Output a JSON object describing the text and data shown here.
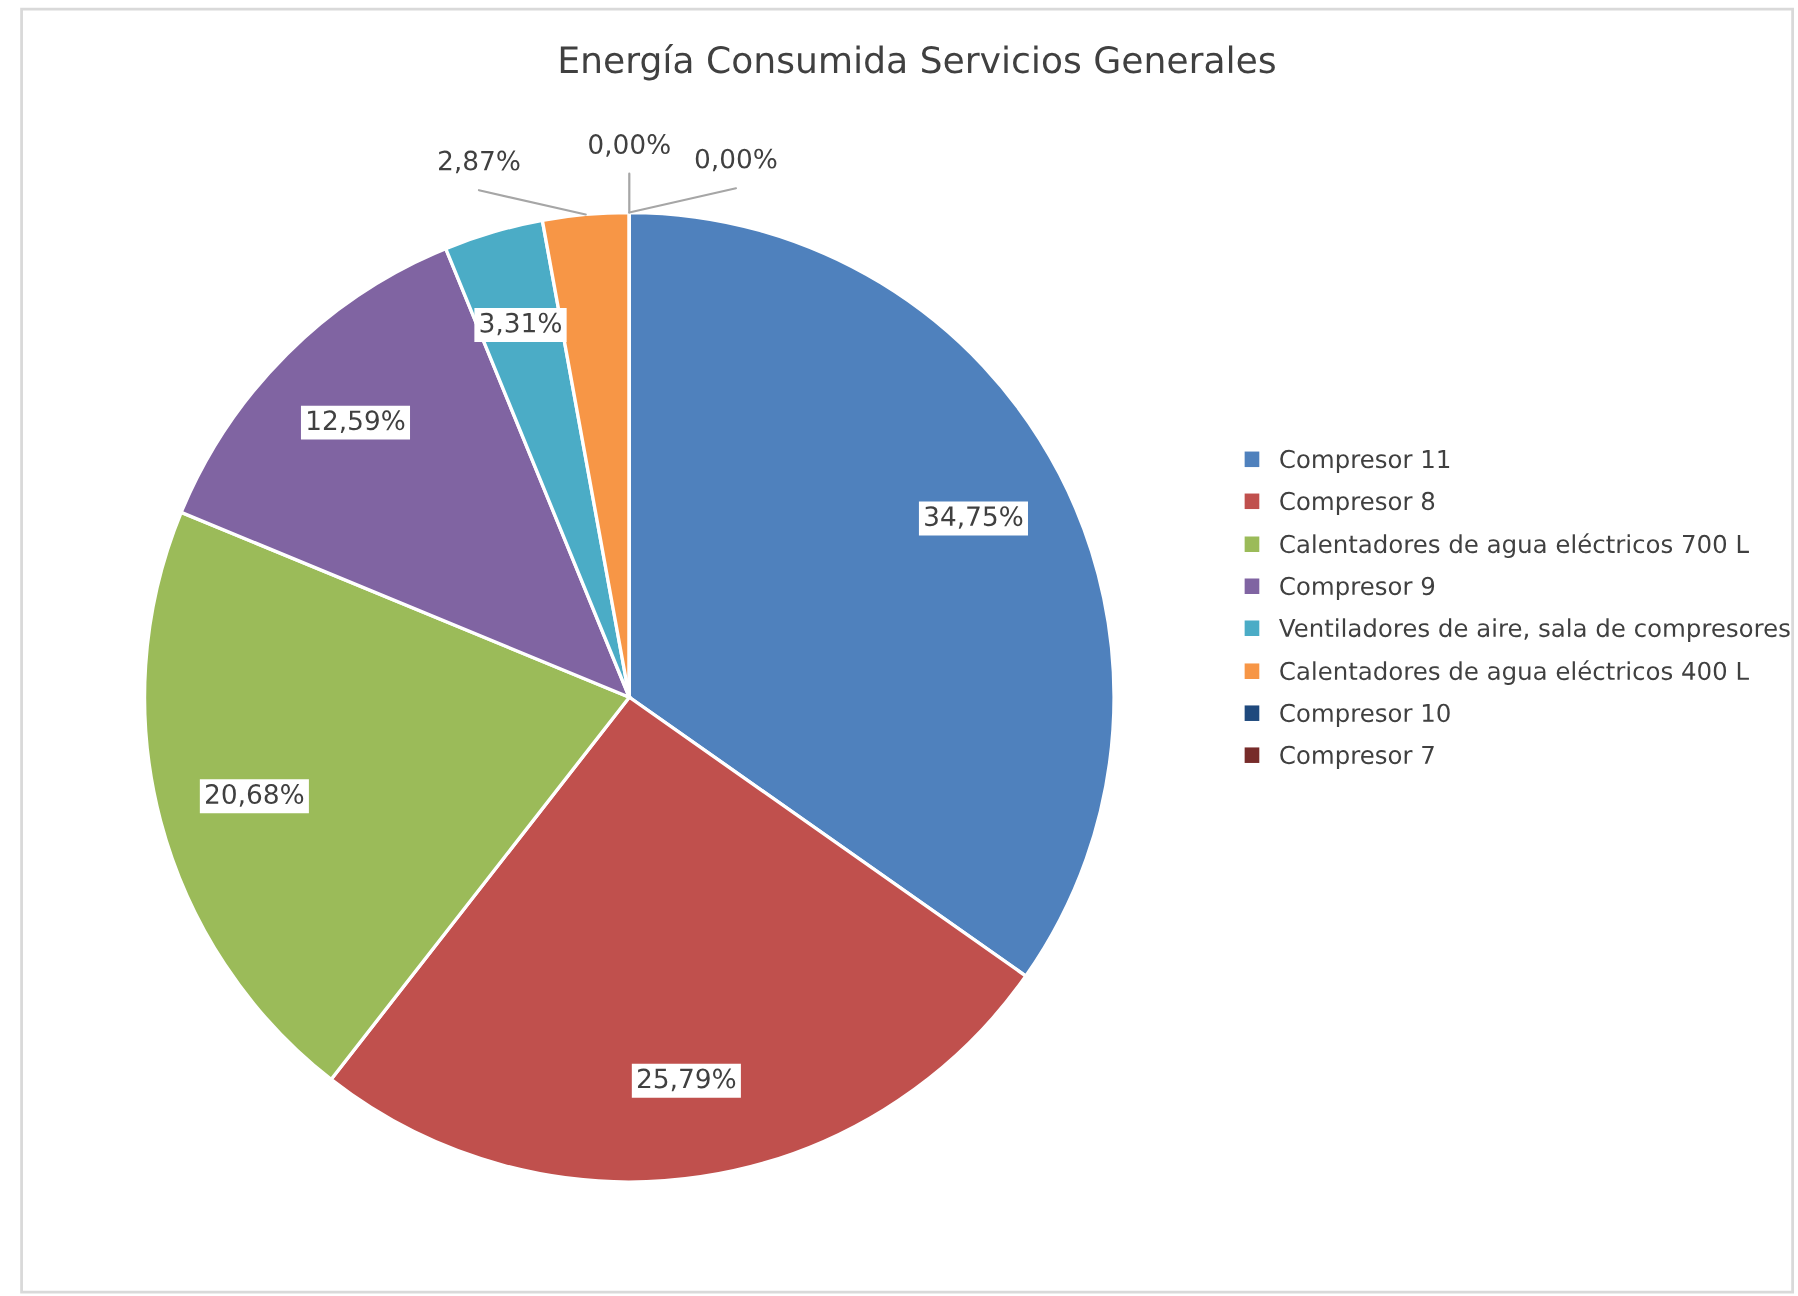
{
  "chart_data": {
    "type": "pie",
    "title": "Energía Consumida Servicios Generales",
    "categories": [
      "Compresor 11",
      "Compresor 8",
      "Calentadores de agua eléctricos 700 L",
      "Compresor 9",
      "Ventiladores de aire, sala de compresores",
      "Calentadores de agua eléctricos 400 L",
      "Compresor 10",
      "Compresor 7"
    ],
    "values": [
      34.75,
      25.79,
      20.68,
      12.59,
      3.31,
      2.87,
      0.0,
      0.0
    ],
    "colors": [
      "#4f81bd",
      "#c0504d",
      "#9bbb59",
      "#8064a2",
      "#4bacc6",
      "#f79646",
      "#1f497d",
      "#772c2a"
    ],
    "value_labels": [
      "34,75%",
      "25,79%",
      "20,68%",
      "12,59%",
      "3,31%",
      "2,87%",
      "0,00%",
      "0,00%"
    ],
    "legend": "right"
  }
}
